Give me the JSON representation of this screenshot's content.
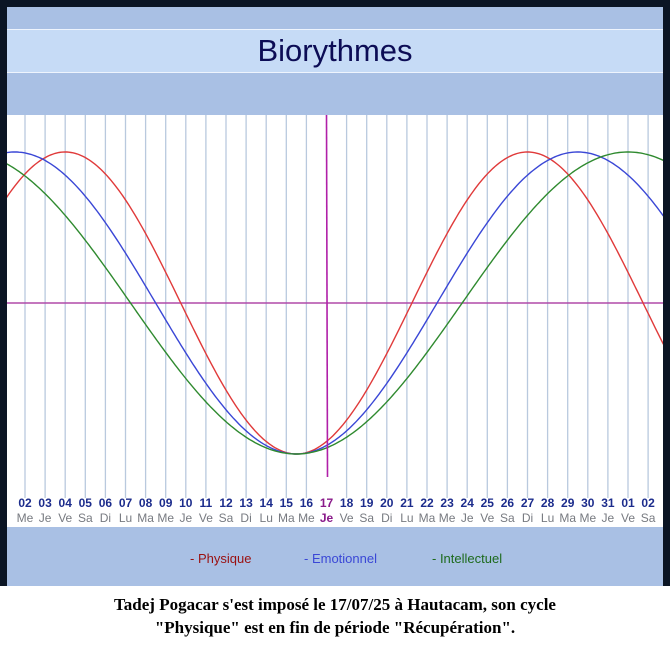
{
  "header": {
    "title": "Biorythmes"
  },
  "chart_data": {
    "type": "line",
    "title": "Biorythmes",
    "x_days": [
      "02",
      "03",
      "04",
      "05",
      "06",
      "07",
      "08",
      "09",
      "10",
      "11",
      "12",
      "13",
      "14",
      "15",
      "16",
      "17",
      "18",
      "19",
      "20",
      "21",
      "22",
      "23",
      "24",
      "25",
      "26",
      "27",
      "28",
      "29",
      "30",
      "31",
      "01",
      "02"
    ],
    "x_weekdays": [
      "Me",
      "Je",
      "Ve",
      "Sa",
      "Di",
      "Lu",
      "Ma",
      "Me",
      "Je",
      "Ve",
      "Sa",
      "Di",
      "Lu",
      "Ma",
      "Me",
      "Je",
      "Ve",
      "Sa",
      "Di",
      "Lu",
      "Ma",
      "Me",
      "Je",
      "Ve",
      "Sa",
      "Di",
      "Lu",
      "Ma",
      "Me",
      "Je",
      "Ve",
      "Sa"
    ],
    "highlight_day": "17",
    "highlight_weekday": "Je",
    "ylim": [
      -1,
      1
    ],
    "series": [
      {
        "name": "Physique",
        "color": "#e03a3a",
        "period": 23,
        "values": [
          0.98,
          1.0,
          0.94,
          0.82,
          0.63,
          0.4,
          0.14,
          -0.14,
          -0.4,
          -0.63,
          -0.82,
          -0.94,
          -1.0,
          -0.98,
          -0.89,
          -0.73,
          -0.52,
          -0.27,
          0.0,
          0.27,
          0.52,
          0.73,
          0.89,
          0.98,
          1.0,
          0.94,
          0.82,
          0.63,
          0.4,
          0.14,
          -0.14,
          -0.4
        ]
      },
      {
        "name": "Emotionnel",
        "color": "#3a47d6",
        "period": 28,
        "values": [
          0.97,
          0.9,
          0.78,
          0.62,
          0.43,
          0.22,
          0.0,
          -0.22,
          -0.43,
          -0.62,
          -0.78,
          -0.9,
          -0.97,
          -1.0,
          -0.97,
          -0.9,
          -0.78,
          -0.62,
          -0.43,
          -0.22,
          0.0,
          0.22,
          0.43,
          0.62,
          0.78,
          0.9,
          0.97,
          1.0,
          0.97,
          0.9,
          0.78,
          0.62
        ]
      },
      {
        "name": "Intellectuel",
        "color": "#2f8a2f",
        "period": 33,
        "values": [
          0.86,
          0.73,
          0.58,
          0.4,
          0.21,
          0.02,
          -0.17,
          -0.36,
          -0.54,
          -0.69,
          -0.82,
          -0.92,
          -0.98,
          -1.0,
          -0.98,
          -0.92,
          -0.82,
          -0.69,
          -0.54,
          -0.36,
          -0.17,
          0.02,
          0.21,
          0.4,
          0.58,
          0.73,
          0.86,
          0.94,
          0.99,
          1.0,
          0.97,
          0.9
        ]
      }
    ],
    "grid": true
  },
  "legend": {
    "physique": "- Physique",
    "emotionnel": "- Emotionnel",
    "intellectuel": "- Intellectuel"
  },
  "caption": {
    "line1": "Tadej Pogacar s'est imposé le 17/07/25 à Hautacam, son cycle",
    "line2": "\"Physique\" est en fin de période \"Récupération\"."
  }
}
